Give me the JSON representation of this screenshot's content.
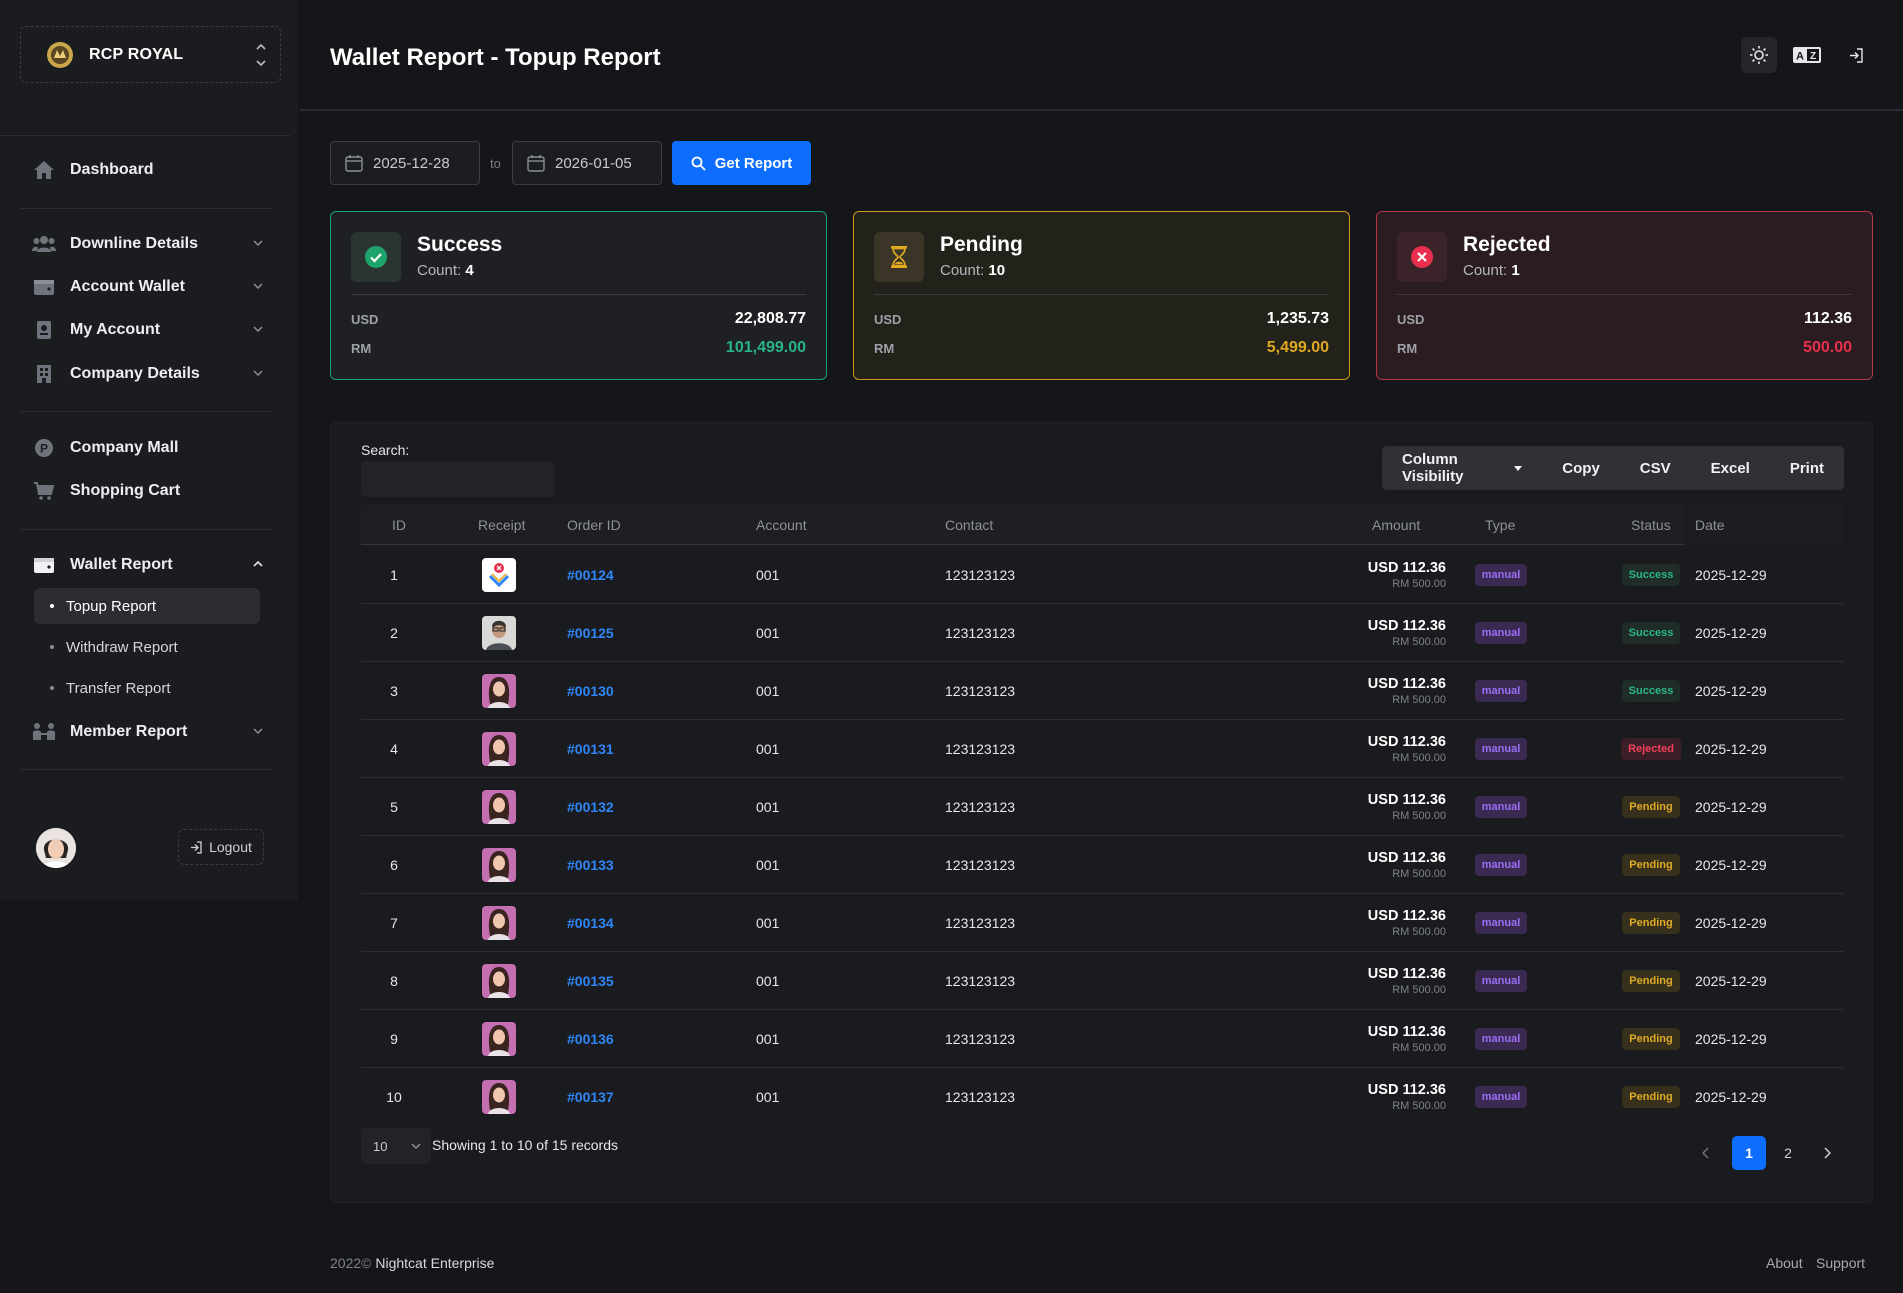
{
  "brand": {
    "name": "RCP ROYAL"
  },
  "sidebar": {
    "items": [
      {
        "label": "Dashboard"
      },
      {
        "label": "Downline Details"
      },
      {
        "label": "Account Wallet"
      },
      {
        "label": "My Account"
      },
      {
        "label": "Company Details"
      },
      {
        "label": "Company Mall"
      },
      {
        "label": "Shopping Cart"
      },
      {
        "label": "Wallet Report"
      },
      {
        "label": "Member Report"
      }
    ],
    "wallet_sub": [
      {
        "label": "Topup Report",
        "active": true
      },
      {
        "label": "Withdraw Report"
      },
      {
        "label": "Transfer Report"
      }
    ],
    "logout_label": "Logout"
  },
  "header": {
    "title": "Wallet Report - Topup Report"
  },
  "filters": {
    "from_date": "2025-12-28",
    "to_label": "to",
    "to_date": "2026-01-05",
    "get_label": "Get Report"
  },
  "cards": [
    {
      "title": "Success",
      "count_label": "Count:",
      "count": "4",
      "usd_label": "USD",
      "usd": "22,808.77",
      "rm_label": "RM",
      "rm": "101,499.00",
      "color": "#28b486"
    },
    {
      "title": "Pending",
      "count_label": "Count:",
      "count": "10",
      "usd_label": "USD",
      "usd": "1,235.73",
      "rm_label": "RM",
      "rm": "5,499.00",
      "color": "#e0a920"
    },
    {
      "title": "Rejected",
      "count_label": "Count:",
      "count": "1",
      "usd_label": "USD",
      "usd": "112.36",
      "rm_label": "RM",
      "rm": "500.00",
      "color": "#e8304e"
    }
  ],
  "table": {
    "search_label": "Search:",
    "buttons": [
      "Column Visibility",
      "Copy",
      "CSV",
      "Excel",
      "Print"
    ],
    "columns": [
      "ID",
      "Receipt",
      "Order ID",
      "Account",
      "Contact",
      "Amount",
      "Type",
      "Status",
      "Date"
    ],
    "rows": [
      {
        "id": "1",
        "order": "#00124",
        "account": "001",
        "contact": "123123123",
        "usd": "USD 112.36",
        "rm": "RM 500.00",
        "type": "manual",
        "status": "Success",
        "date": "2025-12-29",
        "receipt": "logo"
      },
      {
        "id": "2",
        "order": "#00125",
        "account": "001",
        "contact": "123123123",
        "usd": "USD 112.36",
        "rm": "RM 500.00",
        "type": "manual",
        "status": "Success",
        "date": "2025-12-29",
        "receipt": "man"
      },
      {
        "id": "3",
        "order": "#00130",
        "account": "001",
        "contact": "123123123",
        "usd": "USD 112.36",
        "rm": "RM 500.00",
        "type": "manual",
        "status": "Success",
        "date": "2025-12-29",
        "receipt": "woman"
      },
      {
        "id": "4",
        "order": "#00131",
        "account": "001",
        "contact": "123123123",
        "usd": "USD 112.36",
        "rm": "RM 500.00",
        "type": "manual",
        "status": "Rejected",
        "date": "2025-12-29",
        "receipt": "woman"
      },
      {
        "id": "5",
        "order": "#00132",
        "account": "001",
        "contact": "123123123",
        "usd": "USD 112.36",
        "rm": "RM 500.00",
        "type": "manual",
        "status": "Pending",
        "date": "2025-12-29",
        "receipt": "woman"
      },
      {
        "id": "6",
        "order": "#00133",
        "account": "001",
        "contact": "123123123",
        "usd": "USD 112.36",
        "rm": "RM 500.00",
        "type": "manual",
        "status": "Pending",
        "date": "2025-12-29",
        "receipt": "woman"
      },
      {
        "id": "7",
        "order": "#00134",
        "account": "001",
        "contact": "123123123",
        "usd": "USD 112.36",
        "rm": "RM 500.00",
        "type": "manual",
        "status": "Pending",
        "date": "2025-12-29",
        "receipt": "woman"
      },
      {
        "id": "8",
        "order": "#00135",
        "account": "001",
        "contact": "123123123",
        "usd": "USD 112.36",
        "rm": "RM 500.00",
        "type": "manual",
        "status": "Pending",
        "date": "2025-12-29",
        "receipt": "woman"
      },
      {
        "id": "9",
        "order": "#00136",
        "account": "001",
        "contact": "123123123",
        "usd": "USD 112.36",
        "rm": "RM 500.00",
        "type": "manual",
        "status": "Pending",
        "date": "2025-12-29",
        "receipt": "woman"
      },
      {
        "id": "10",
        "order": "#00137",
        "account": "001",
        "contact": "123123123",
        "usd": "USD 112.36",
        "rm": "RM 500.00",
        "type": "manual",
        "status": "Pending",
        "date": "2025-12-29",
        "receipt": "woman"
      }
    ],
    "page_length": "10",
    "info": "Showing 1 to 10 of 15 records",
    "pages": [
      "1",
      "2"
    ],
    "current_page": "1"
  },
  "footer": {
    "year": "2022©",
    "company": "Nightcat Enterprise",
    "links": [
      "About",
      "Support"
    ]
  },
  "colors": {
    "accent": "#0d6efd",
    "success": "#28b486",
    "pending": "#e0a920",
    "rejected": "#e8304e",
    "link": "#2f86f6"
  }
}
